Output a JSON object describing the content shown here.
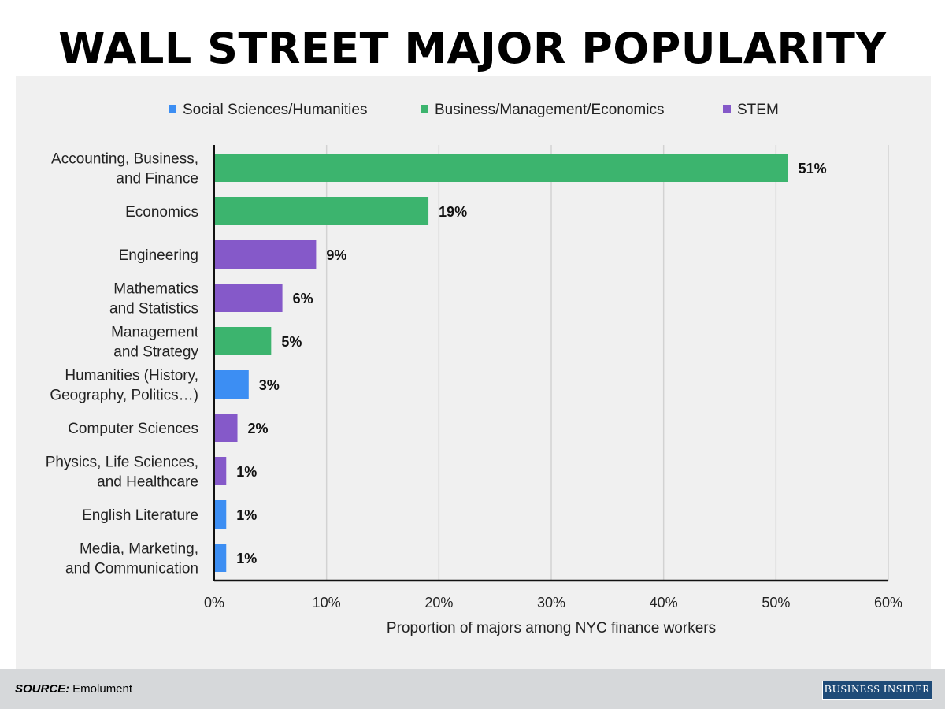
{
  "title": "WALL STREET MAJOR POPULARITY",
  "footer": {
    "source_label": "SOURCE:",
    "source_value": "Emolument",
    "brand": "BUSINESS INSIDER"
  },
  "chart_data": {
    "type": "bar",
    "orientation": "horizontal",
    "title": "WALL STREET MAJOR POPULARITY",
    "xlabel": "Proportion of majors among NYC finance workers",
    "ylabel": "",
    "xlim": [
      0,
      60
    ],
    "xticks": [
      "0%",
      "10%",
      "20%",
      "30%",
      "40%",
      "50%",
      "60%"
    ],
    "xtick_values": [
      0,
      10,
      20,
      30,
      40,
      50,
      60
    ],
    "grid": true,
    "legend_position": "top",
    "legend": [
      {
        "name": "Social Sciences/Humanities",
        "color": "#3c8ef3"
      },
      {
        "name": "Business/Management/Economics",
        "color": "#3cb46e"
      },
      {
        "name": "STEM",
        "color": "#8559c9"
      }
    ],
    "categories": [
      [
        "Accounting, Business,",
        "and Finance"
      ],
      [
        "Economics"
      ],
      [
        "Engineering"
      ],
      [
        "Mathematics",
        "and Statistics"
      ],
      [
        "Management",
        "and Strategy"
      ],
      [
        "Humanities (History,",
        "Geography, Politics…)"
      ],
      [
        "Computer Sciences"
      ],
      [
        "Physics, Life Sciences,",
        "and Healthcare"
      ],
      [
        "English Literature"
      ],
      [
        "Media, Marketing,",
        "and Communication"
      ]
    ],
    "values": [
      51,
      19,
      9,
      6,
      5,
      3,
      2,
      1,
      1,
      1
    ],
    "value_labels": [
      "51%",
      "19%",
      "9%",
      "6%",
      "5%",
      "3%",
      "2%",
      "1%",
      "1%",
      "1%"
    ],
    "group": [
      "Business/Management/Economics",
      "Business/Management/Economics",
      "STEM",
      "STEM",
      "Business/Management/Economics",
      "Social Sciences/Humanities",
      "STEM",
      "STEM",
      "Social Sciences/Humanities",
      "Social Sciences/Humanities"
    ]
  }
}
